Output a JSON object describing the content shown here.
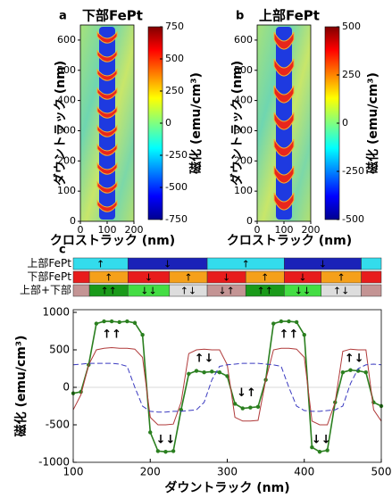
{
  "chart_data": [
    {
      "type": "heatmap",
      "panel": "a",
      "title": "下部FePt",
      "x_label": "クロストラック (nm)",
      "y_label": "ダウントラック (nm)",
      "colorbar_label": "磁化 (emu/cm³)",
      "xlim": [
        0,
        200
      ],
      "xticks": [
        0,
        100,
        200
      ],
      "ylim": [
        0,
        650
      ],
      "yticks": [
        0,
        100,
        200,
        300,
        400,
        500,
        600
      ],
      "clim": [
        -750,
        750
      ],
      "cticks": [
        750,
        500,
        250,
        0,
        -250,
        -500,
        -750
      ]
    },
    {
      "type": "heatmap",
      "panel": "b",
      "title": "上部FePt",
      "x_label": "クロストラック (nm)",
      "y_label": "ダウントラック (nm)",
      "colorbar_label": "磁化 (emu/cm³)",
      "xlim": [
        0,
        200
      ],
      "xticks": [
        0,
        100,
        200
      ],
      "ylim": [
        0,
        650
      ],
      "yticks": [
        0,
        100,
        200,
        300,
        400,
        500,
        600
      ],
      "clim": [
        -500,
        500
      ],
      "cticks": [
        500,
        250,
        0,
        -250,
        -500
      ]
    },
    {
      "type": "domains",
      "panel": "c",
      "xlim": [
        100,
        500
      ],
      "rows": [
        {
          "label": "上部FePt",
          "color": "#1a2fb0",
          "segments": [
            {
              "start": 100,
              "end": 171,
              "color": "#33dcec",
              "arrow": "↑"
            },
            {
              "start": 171,
              "end": 274,
              "color": "#1a22b8",
              "arrow": "↓"
            },
            {
              "start": 274,
              "end": 374,
              "color": "#33dcec",
              "arrow": "↑"
            },
            {
              "start": 374,
              "end": 474,
              "color": "#1a22b8",
              "arrow": "↓"
            },
            {
              "start": 474,
              "end": 500,
              "color": "#33dcec"
            }
          ]
        },
        {
          "label": "下部FePt",
          "color": "#e01818",
          "segments": [
            {
              "start": 100,
              "end": 121,
              "color": "#e81c1c"
            },
            {
              "start": 121,
              "end": 171,
              "color": "#f5a01a",
              "arrow": "↑"
            },
            {
              "start": 171,
              "end": 225,
              "color": "#e81c1c",
              "arrow": "↓"
            },
            {
              "start": 225,
              "end": 274,
              "color": "#f5a01a",
              "arrow": "↑"
            },
            {
              "start": 274,
              "end": 324,
              "color": "#e81c1c",
              "arrow": "↓"
            },
            {
              "start": 324,
              "end": 374,
              "color": "#f5a01a",
              "arrow": "↑"
            },
            {
              "start": 374,
              "end": 422,
              "color": "#e81c1c",
              "arrow": "↓"
            },
            {
              "start": 422,
              "end": 474,
              "color": "#f5a01a",
              "arrow": "↑"
            },
            {
              "start": 474,
              "end": 500,
              "color": "#e81c1c"
            }
          ]
        },
        {
          "label": "上部+下部",
          "color": "#1a9a1a",
          "segments": [
            {
              "start": 100,
              "end": 121,
              "color": "#c49494"
            },
            {
              "start": 121,
              "end": 171,
              "color": "#1a9a1a",
              "arrow": "↑↑"
            },
            {
              "start": 171,
              "end": 225,
              "color": "#44dd44",
              "arrow": "↓↓"
            },
            {
              "start": 225,
              "end": 274,
              "color": "#dddddd",
              "arrow": "↑↓"
            },
            {
              "start": 274,
              "end": 324,
              "color": "#c49494",
              "arrow": "↓↑"
            },
            {
              "start": 324,
              "end": 374,
              "color": "#1a9a1a",
              "arrow": "↑↑"
            },
            {
              "start": 374,
              "end": 422,
              "color": "#44dd44",
              "arrow": "↓↓"
            },
            {
              "start": 422,
              "end": 474,
              "color": "#dddddd",
              "arrow": "↑↓"
            },
            {
              "start": 474,
              "end": 500,
              "color": "#c49494"
            }
          ]
        }
      ]
    },
    {
      "type": "line",
      "x_label": "ダウントラック (nm)",
      "y_label": "磁化 (emu/cm³)",
      "x": [
        100,
        110,
        120,
        130,
        140,
        150,
        160,
        170,
        180,
        190,
        200,
        210,
        220,
        230,
        240,
        250,
        260,
        270,
        280,
        290,
        300,
        310,
        320,
        330,
        340,
        350,
        360,
        370,
        380,
        390,
        400,
        410,
        420,
        430,
        440,
        450,
        460,
        470,
        480,
        490,
        500
      ],
      "xlim": [
        100,
        500
      ],
      "xticks": [
        100,
        200,
        300,
        400,
        500
      ],
      "ylim": [
        -1000,
        1000
      ],
      "yticks": [
        -1000,
        -500,
        0,
        500,
        1000
      ],
      "zero_line": true,
      "series": [
        {
          "color": "#2a7f1f",
          "style": "markers",
          "values": [
            -80,
            -60,
            300,
            850,
            880,
            880,
            870,
            880,
            860,
            700,
            -600,
            -850,
            -860,
            -850,
            -300,
            180,
            220,
            200,
            210,
            200,
            150,
            -220,
            -280,
            -270,
            -260,
            100,
            850,
            880,
            880,
            870,
            700,
            -800,
            -860,
            -840,
            -200,
            200,
            230,
            220,
            200,
            -200,
            -250
          ]
        },
        {
          "color": "#b03a3a",
          "style": "solid",
          "values": [
            -300,
            -100,
            300,
            500,
            520,
            530,
            520,
            520,
            510,
            400,
            -400,
            -500,
            -500,
            -490,
            -200,
            450,
            500,
            510,
            500,
            500,
            300,
            -400,
            -450,
            -450,
            -440,
            100,
            500,
            520,
            520,
            510,
            400,
            -450,
            -500,
            -500,
            -200,
            480,
            510,
            500,
            500,
            -300,
            -450
          ]
        },
        {
          "color": "#3a3ac0",
          "style": "dashed",
          "values": [
            300,
            310,
            320,
            320,
            320,
            320,
            310,
            280,
            0,
            -250,
            -320,
            -330,
            -330,
            -320,
            -320,
            -310,
            -300,
            -200,
            100,
            280,
            300,
            310,
            320,
            320,
            320,
            310,
            300,
            280,
            0,
            -250,
            -310,
            -320,
            -320,
            -310,
            -300,
            -250,
            50,
            250,
            300,
            310,
            300
          ]
        }
      ],
      "annotation_color": "#2a9a2a",
      "annotations": [
        {
          "text": "↑↑",
          "x": 150,
          "y": 700
        },
        {
          "text": "↓↓",
          "x": 220,
          "y": -700
        },
        {
          "text": "↑↓",
          "x": 270,
          "y": 380
        },
        {
          "text": "↓↑",
          "x": 325,
          "y": -80
        },
        {
          "text": "↑↑",
          "x": 380,
          "y": 700
        },
        {
          "text": "↓↓",
          "x": 422,
          "y": -700
        },
        {
          "text": "↑↓",
          "x": 465,
          "y": 380
        }
      ]
    }
  ]
}
